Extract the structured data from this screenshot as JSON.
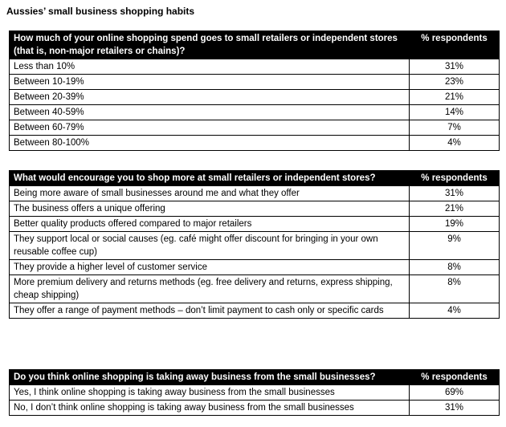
{
  "title": "Aussies’ small business shopping habits",
  "tables": [
    {
      "question": "How much of your online shopping spend goes to small retailers or independent stores (that is, non-major retailers or chains)?",
      "pct_header": "% respondents",
      "rows": [
        {
          "label": "Less than 10%",
          "value": "31%"
        },
        {
          "label": "Between 10-19%",
          "value": "23%"
        },
        {
          "label": "Between 20-39%",
          "value": "21%"
        },
        {
          "label": "Between 40-59%",
          "value": "14%"
        },
        {
          "label": "Between 60-79%",
          "value": "7%"
        },
        {
          "label": "Between 80-100%",
          "value": "4%"
        }
      ]
    },
    {
      "question": "What would encourage you to shop more at small retailers or independent stores?",
      "pct_header": "% respondents",
      "rows": [
        {
          "label": "Being more aware of small businesses around me and what they offer",
          "value": "31%"
        },
        {
          "label": "The business offers a unique offering",
          "value": "21%"
        },
        {
          "label": "Better quality products offered compared to major retailers",
          "value": "19%"
        },
        {
          "label": "They support local or social causes (eg. café might offer discount for bringing in your own reusable coffee cup)",
          "value": "9%"
        },
        {
          "label": "They provide a higher level of customer service",
          "value": "8%"
        },
        {
          "label": "More premium delivery and returns methods (eg. free delivery and returns, express shipping, cheap shipping)",
          "value": "8%"
        },
        {
          "label": "They offer a range of payment methods – don’t limit payment to cash only or specific cards",
          "value": "4%"
        }
      ]
    },
    {
      "question": "Do you think online shopping is taking away business from the small businesses?",
      "pct_header": "% respondents",
      "rows": [
        {
          "label": "Yes, I think online shopping is taking away business from the small businesses",
          "value": "69%"
        },
        {
          "label": "No, I don’t think online shopping is taking away business from the small businesses",
          "value": "31%"
        }
      ]
    }
  ]
}
